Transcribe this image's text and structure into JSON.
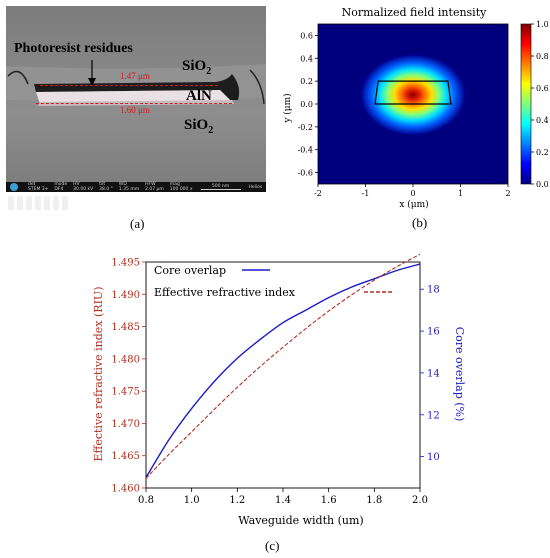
{
  "panel_a": {
    "label": "(a)",
    "annotations": {
      "residues": "Photoresist residues",
      "top_width": "1.47 μm",
      "bottom_width": "1.60 μm",
      "core": "AlN",
      "cladding_top": "SiO",
      "cladding_bottom": "SiO",
      "subscript": "2"
    },
    "infobar": {
      "det_head": "det",
      "det_val": "STEM 3+",
      "mode_head": "mode",
      "mode_val": "DF4",
      "hv_head": "HV",
      "hv_val": "30.00 kV",
      "tilt_head": "tilt",
      "tilt_val": "38.0 °",
      "wd_head": "WD",
      "wd_val": "1.35 mm",
      "hfw_head": "HFW",
      "hfw_val": "2.07 μm",
      "mag_head": "mag",
      "mag_val": "100 000 x",
      "scale": "500 nm",
      "brand": "Helios"
    }
  },
  "chart_data": [
    {
      "type": "heatmap",
      "title": "Normalized field intensity",
      "xlabel": "x (μm)",
      "ylabel": "y (μm)",
      "xlim": [
        -2,
        2
      ],
      "ylim": [
        -0.7,
        0.7
      ],
      "xticks": [
        "-2",
        "-1",
        "0",
        "1",
        "2"
      ],
      "yticks": [
        "-0.6",
        "-0.4",
        "-0.2",
        "0.0",
        "0.2",
        "0.4",
        "0.6"
      ],
      "colorbar": {
        "range": [
          0.0,
          1.0
        ],
        "ticks": [
          "0.0",
          "0.2",
          "0.4",
          "0.6",
          "0.8",
          "1.0"
        ],
        "colormap": "jet"
      },
      "peak": {
        "x": 0.0,
        "y": 0.08,
        "value": 1.0
      },
      "waveguide_outline": {
        "top_width_um": 1.47,
        "bottom_width_um": 1.6,
        "y_bottom_um": 0.0,
        "y_top_um": 0.2
      },
      "grid": false
    },
    {
      "type": "line",
      "xlabel": "Waveguide width (um)",
      "ylabel_left": "Effective refractive index (RIU)",
      "ylabel_right": "Core overlap (%)",
      "xlim": [
        0.8,
        2.0
      ],
      "ylim_left": [
        1.46,
        1.495
      ],
      "ylim_right": [
        8.5,
        19.3
      ],
      "xticks": [
        "0.8",
        "1.0",
        "1.2",
        "1.4",
        "1.6",
        "1.8",
        "2.0"
      ],
      "yticks_left": [
        "1.460",
        "1.465",
        "1.470",
        "1.475",
        "1.480",
        "1.485",
        "1.490",
        "1.495"
      ],
      "yticks_right": [
        "10",
        "12",
        "14",
        "16",
        "18"
      ],
      "legend_position": "top-left",
      "series": [
        {
          "name": "Core overlap",
          "axis": "right",
          "color": "#1a1acc",
          "dash": "solid",
          "x": [
            0.8,
            0.9,
            1.0,
            1.1,
            1.2,
            1.3,
            1.4,
            1.5,
            1.6,
            1.7,
            1.8,
            1.9,
            2.0
          ],
          "values": [
            9.0,
            10.8,
            12.3,
            13.6,
            14.7,
            15.6,
            16.4,
            17.0,
            17.6,
            18.1,
            18.5,
            18.9,
            19.2
          ]
        },
        {
          "name": "Effective refractive index",
          "axis": "left",
          "color": "#b03020",
          "dash": "dashed",
          "x": [
            0.8,
            0.9,
            1.0,
            1.1,
            1.2,
            1.3,
            1.4,
            1.5,
            1.6,
            1.7,
            1.8,
            1.9,
            2.0
          ],
          "values": [
            1.4615,
            1.4652,
            1.4687,
            1.4722,
            1.4756,
            1.4788,
            1.4818,
            1.4847,
            1.4874,
            1.4899,
            1.4922,
            1.4943,
            1.4962
          ]
        }
      ]
    }
  ],
  "panel_b_label": "(b)",
  "panel_c_label": "(c)"
}
